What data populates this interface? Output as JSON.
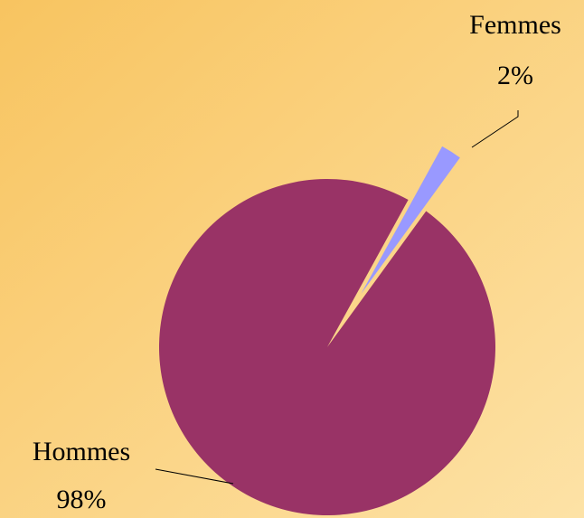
{
  "chart_data": {
    "type": "pie",
    "categories": [
      "Hommes",
      "Femmes"
    ],
    "values": [
      98,
      2
    ],
    "value_labels": [
      "98%",
      "2%"
    ],
    "colors": [
      "#993366",
      "#9999ff"
    ]
  }
}
